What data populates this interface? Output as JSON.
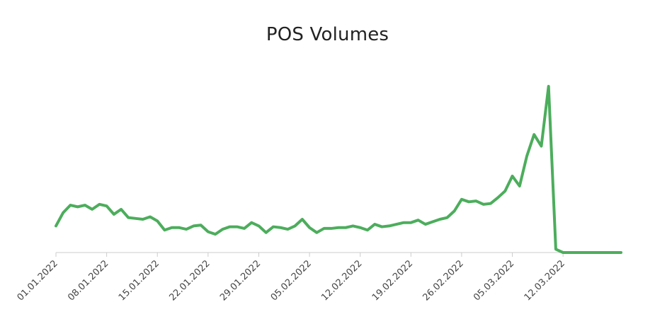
{
  "chart_data": {
    "type": "line",
    "title": "POS Volumes",
    "xlabel": "",
    "ylabel": "",
    "grid": false,
    "legend": "none",
    "x_tick_labels": [
      "01.01.2022",
      "08.01.2022",
      "15.01.2022",
      "22.01.2022",
      "29.01.2022",
      "05.02.2022",
      "12.02.2022",
      "19.02.2022",
      "26.02.2022",
      "05.03.2022",
      "12.03.2022"
    ],
    "x": [
      "2022-01-01",
      "2022-01-02",
      "2022-01-03",
      "2022-01-04",
      "2022-01-05",
      "2022-01-06",
      "2022-01-07",
      "2022-01-08",
      "2022-01-09",
      "2022-01-10",
      "2022-01-11",
      "2022-01-12",
      "2022-01-13",
      "2022-01-14",
      "2022-01-15",
      "2022-01-16",
      "2022-01-17",
      "2022-01-18",
      "2022-01-19",
      "2022-01-20",
      "2022-01-21",
      "2022-01-22",
      "2022-01-23",
      "2022-01-24",
      "2022-01-25",
      "2022-01-26",
      "2022-01-27",
      "2022-01-28",
      "2022-01-29",
      "2022-01-30",
      "2022-01-31",
      "2022-02-01",
      "2022-02-02",
      "2022-02-03",
      "2022-02-04",
      "2022-02-05",
      "2022-02-06",
      "2022-02-07",
      "2022-02-08",
      "2022-02-09",
      "2022-02-10",
      "2022-02-11",
      "2022-02-12",
      "2022-02-13",
      "2022-02-14",
      "2022-02-15",
      "2022-02-16",
      "2022-02-17",
      "2022-02-18",
      "2022-02-19",
      "2022-02-20",
      "2022-02-21",
      "2022-02-22",
      "2022-02-23",
      "2022-02-24",
      "2022-02-25",
      "2022-02-26",
      "2022-02-27",
      "2022-02-28",
      "2022-03-01",
      "2022-03-02",
      "2022-03-03",
      "2022-03-04",
      "2022-03-05",
      "2022-03-06",
      "2022-03-07",
      "2022-03-08",
      "2022-03-09",
      "2022-03-10",
      "2022-03-11",
      "2022-03-12",
      "2022-03-13",
      "2022-03-14",
      "2022-03-15",
      "2022-03-16",
      "2022-03-17",
      "2022-03-18",
      "2022-03-19",
      "2022-03-20"
    ],
    "series": [
      {
        "values": [
          16,
          24,
          28.5,
          27.5,
          28.5,
          26,
          29,
          28,
          23,
          26,
          21,
          20.5,
          20,
          21.5,
          19,
          13.5,
          15,
          15,
          14,
          16,
          16.5,
          12.5,
          11,
          14,
          15.5,
          15.5,
          14.5,
          18,
          16,
          12,
          15.5,
          15,
          14,
          16,
          20,
          15,
          12,
          14.5,
          14.5,
          15,
          15,
          16,
          15,
          13.5,
          17,
          15.5,
          16,
          17,
          18,
          18,
          19.5,
          17,
          18.5,
          20,
          21,
          25,
          32,
          30.5,
          31,
          29,
          29.5,
          33,
          37,
          46,
          40,
          58,
          71,
          64,
          100,
          2,
          0,
          0,
          0,
          0,
          0,
          0,
          0,
          0,
          0
        ],
        "color": "#4cad5c"
      }
    ],
    "ylim": [
      0,
      100
    ]
  }
}
